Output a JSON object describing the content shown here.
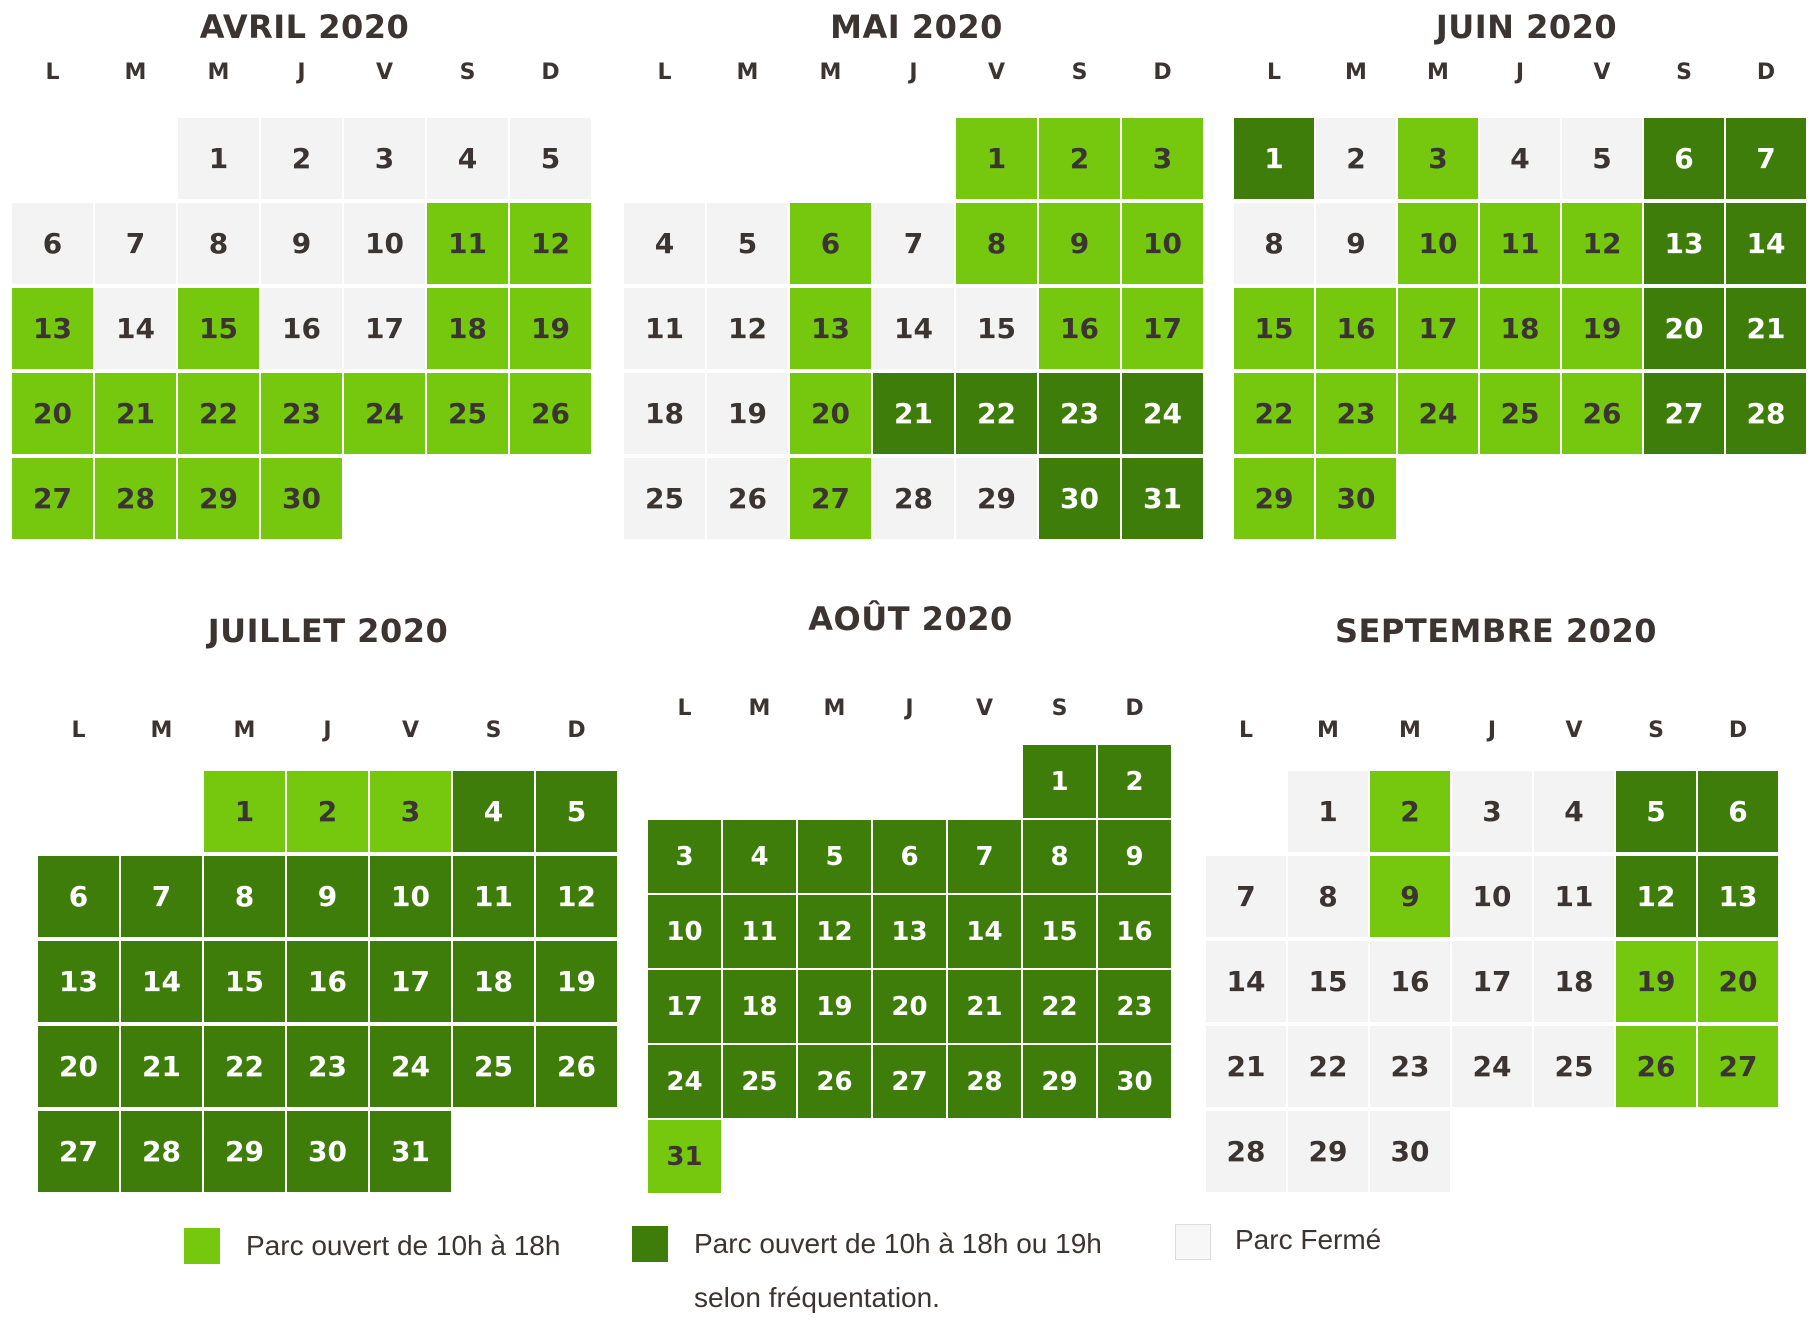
{
  "weekday_labels": [
    "L",
    "M",
    "M",
    "J",
    "V",
    "S",
    "D"
  ],
  "colors": {
    "light": "#76c80f",
    "dark": "#3f7d0a",
    "closed": "#f3f3f3"
  },
  "months": [
    {
      "title": "AVRIL 2020",
      "start_col": 2,
      "days": [
        "c",
        "c",
        "c",
        "c",
        "c",
        "c",
        "c",
        "c",
        "c",
        "c",
        "l",
        "l",
        "l",
        "c",
        "l",
        "c",
        "c",
        "l",
        "l",
        "l",
        "l",
        "l",
        "l",
        "l",
        "l",
        "l",
        "l",
        "l",
        "l",
        "l"
      ]
    },
    {
      "title": "MAI 2020",
      "start_col": 4,
      "days": [
        "l",
        "l",
        "l",
        "c",
        "c",
        "l",
        "c",
        "l",
        "l",
        "l",
        "c",
        "c",
        "l",
        "c",
        "c",
        "l",
        "l",
        "c",
        "c",
        "l",
        "d",
        "d",
        "d",
        "d",
        "c",
        "c",
        "l",
        "c",
        "c",
        "d",
        "d"
      ]
    },
    {
      "title": "JUIN 2020",
      "start_col": 0,
      "days": [
        "d",
        "c",
        "l",
        "c",
        "c",
        "d",
        "d",
        "c",
        "c",
        "l",
        "l",
        "l",
        "d",
        "d",
        "l",
        "l",
        "l",
        "l",
        "l",
        "d",
        "d",
        "l",
        "l",
        "l",
        "l",
        "l",
        "d",
        "d",
        "l",
        "l"
      ]
    },
    {
      "title": "JUILLET 2020",
      "start_col": 2,
      "days": [
        "l",
        "l",
        "l",
        "d",
        "d",
        "d",
        "d",
        "d",
        "d",
        "d",
        "d",
        "d",
        "d",
        "d",
        "d",
        "d",
        "d",
        "d",
        "d",
        "d",
        "d",
        "d",
        "d",
        "d",
        "d",
        "d",
        "d",
        "d",
        "d",
        "d",
        "d"
      ]
    },
    {
      "title": "AOÛT 2020",
      "start_col": 5,
      "days": [
        "d",
        "d",
        "d",
        "d",
        "d",
        "d",
        "d",
        "d",
        "d",
        "d",
        "d",
        "d",
        "d",
        "d",
        "d",
        "d",
        "d",
        "d",
        "d",
        "d",
        "d",
        "d",
        "d",
        "d",
        "d",
        "d",
        "d",
        "d",
        "d",
        "d",
        "l"
      ]
    },
    {
      "title": "SEPTEMBRE 2020",
      "start_col": 1,
      "days": [
        "c",
        "l",
        "c",
        "c",
        "d",
        "d",
        "c",
        "c",
        "l",
        "c",
        "c",
        "d",
        "d",
        "c",
        "c",
        "c",
        "c",
        "c",
        "l",
        "l",
        "c",
        "c",
        "c",
        "c",
        "c",
        "l",
        "l",
        "c",
        "c",
        "c"
      ]
    }
  ],
  "legend": [
    {
      "swatch": "light",
      "text": "Parc ouvert de 10h à 18h",
      "text2": ""
    },
    {
      "swatch": "dark",
      "text": "Parc ouvert de 10h à 18h ou 19h",
      "text2": "selon fréquentation."
    },
    {
      "swatch": "closed",
      "text": "Parc Fermé",
      "text2": ""
    }
  ]
}
